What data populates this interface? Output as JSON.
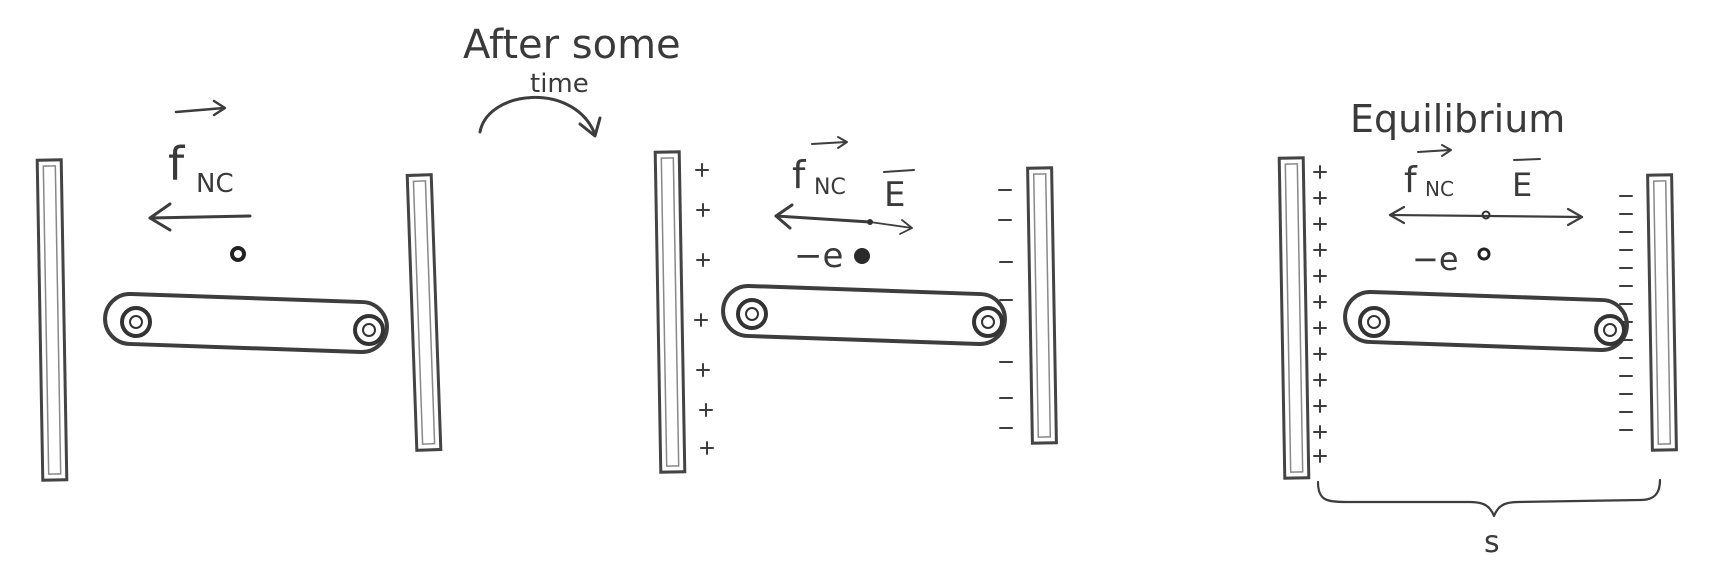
{
  "transition": {
    "line1": "After some",
    "line2": "time"
  },
  "panel1": {
    "force_label": "f",
    "force_sub": "NC"
  },
  "panel2": {
    "force_label": "f",
    "force_sub": "NC",
    "field_label": "E",
    "charge_label": "−e"
  },
  "panel3": {
    "title": "Equilibrium",
    "force_label": "f",
    "force_sub": "NC",
    "field_label": "E",
    "charge_label": "−e",
    "distance_label": "s"
  }
}
